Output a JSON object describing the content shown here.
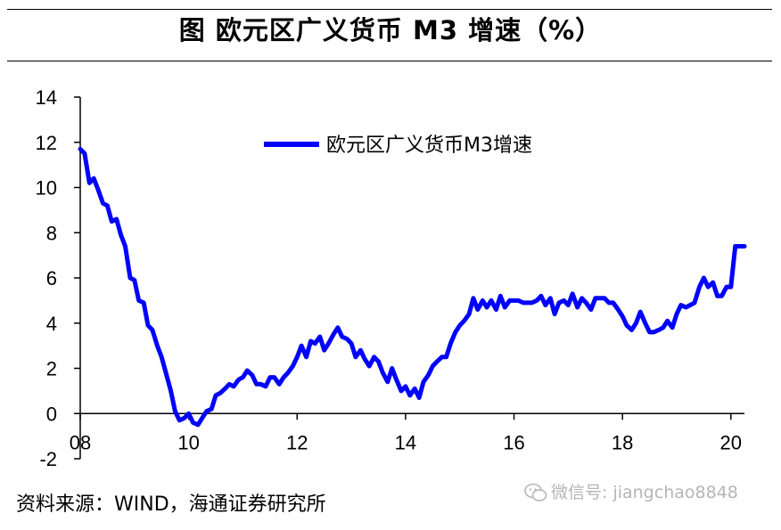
{
  "title": "图  欧元区广义货币 M3 增速（%）",
  "source": "资料来源：WIND，海通证券研究所",
  "watermark": {
    "text": "微信号: jiangchao8848",
    "icon": "wechat-icon"
  },
  "colors": {
    "series": "#0000ff",
    "axis": "#000000"
  },
  "chart_data": {
    "type": "line",
    "title": "图  欧元区广义货币 M3 增速（%）",
    "xlabel": "",
    "ylabel": "",
    "xlim": [
      2008.0,
      2020.25
    ],
    "ylim": [
      -2,
      14
    ],
    "yticks": [
      -2,
      0,
      2,
      4,
      6,
      8,
      10,
      12,
      14
    ],
    "xticks": [
      2008,
      2010,
      2012,
      2014,
      2016,
      2018,
      2020
    ],
    "xtick_labels": [
      "08",
      "10",
      "12",
      "14",
      "16",
      "18",
      "20"
    ],
    "grid": false,
    "legend": {
      "position": "top-center"
    },
    "series": [
      {
        "name": "欧元区广义货币M3增速",
        "x": [
          2008.0,
          2008.08,
          2008.17,
          2008.25,
          2008.33,
          2008.42,
          2008.5,
          2008.58,
          2008.67,
          2008.75,
          2008.83,
          2008.92,
          2009.0,
          2009.08,
          2009.17,
          2009.25,
          2009.33,
          2009.42,
          2009.5,
          2009.58,
          2009.67,
          2009.75,
          2009.83,
          2009.92,
          2010.0,
          2010.08,
          2010.17,
          2010.25,
          2010.33,
          2010.42,
          2010.5,
          2010.58,
          2010.67,
          2010.75,
          2010.83,
          2010.92,
          2011.0,
          2011.08,
          2011.17,
          2011.25,
          2011.33,
          2011.42,
          2011.5,
          2011.58,
          2011.67,
          2011.75,
          2011.83,
          2011.92,
          2012.0,
          2012.08,
          2012.17,
          2012.25,
          2012.33,
          2012.42,
          2012.5,
          2012.58,
          2012.67,
          2012.75,
          2012.83,
          2012.92,
          2013.0,
          2013.08,
          2013.17,
          2013.25,
          2013.33,
          2013.42,
          2013.5,
          2013.58,
          2013.67,
          2013.75,
          2013.83,
          2013.92,
          2014.0,
          2014.08,
          2014.17,
          2014.25,
          2014.33,
          2014.42,
          2014.5,
          2014.58,
          2014.67,
          2014.75,
          2014.83,
          2014.92,
          2015.0,
          2015.08,
          2015.17,
          2015.25,
          2015.33,
          2015.42,
          2015.5,
          2015.58,
          2015.67,
          2015.75,
          2015.83,
          2015.92,
          2016.0,
          2016.08,
          2016.17,
          2016.25,
          2016.33,
          2016.42,
          2016.5,
          2016.58,
          2016.67,
          2016.75,
          2016.83,
          2016.92,
          2017.0,
          2017.08,
          2017.17,
          2017.25,
          2017.33,
          2017.42,
          2017.5,
          2017.58,
          2017.67,
          2017.75,
          2017.83,
          2017.92,
          2018.0,
          2018.08,
          2018.17,
          2018.25,
          2018.33,
          2018.42,
          2018.5,
          2018.58,
          2018.67,
          2018.75,
          2018.83,
          2018.92,
          2019.0,
          2019.08,
          2019.17,
          2019.25,
          2019.33,
          2019.42,
          2019.5,
          2019.58,
          2019.67,
          2019.75,
          2019.83,
          2019.92,
          2020.0,
          2020.08,
          2020.17,
          2020.25
        ],
        "values": [
          11.7,
          11.5,
          10.2,
          10.4,
          9.9,
          9.3,
          9.2,
          8.5,
          8.6,
          7.9,
          7.4,
          6.0,
          5.9,
          5.0,
          4.9,
          3.9,
          3.7,
          3.0,
          2.5,
          1.8,
          1.0,
          0.1,
          -0.3,
          -0.2,
          0.0,
          -0.4,
          -0.5,
          -0.2,
          0.1,
          0.2,
          0.8,
          0.9,
          1.1,
          1.3,
          1.2,
          1.5,
          1.6,
          1.9,
          1.7,
          1.3,
          1.3,
          1.2,
          1.6,
          1.6,
          1.3,
          1.6,
          1.8,
          2.1,
          2.5,
          3.0,
          2.5,
          3.2,
          3.1,
          3.4,
          2.8,
          3.1,
          3.5,
          3.8,
          3.4,
          3.3,
          3.1,
          2.5,
          2.8,
          2.4,
          2.1,
          2.5,
          2.3,
          1.8,
          1.4,
          2.0,
          1.5,
          1.0,
          1.2,
          0.8,
          1.1,
          0.7,
          1.4,
          1.7,
          2.1,
          2.3,
          2.5,
          2.5,
          3.1,
          3.6,
          3.9,
          4.1,
          4.4,
          5.1,
          4.6,
          5.0,
          4.7,
          5.0,
          4.6,
          5.2,
          4.7,
          5.0,
          5.0,
          5.0,
          4.9,
          4.9,
          4.9,
          5.0,
          5.2,
          4.8,
          5.1,
          4.4,
          4.9,
          5.0,
          4.8,
          5.3,
          4.7,
          5.1,
          4.9,
          4.6,
          5.1,
          5.1,
          5.1,
          4.9,
          4.9,
          4.6,
          4.3,
          3.9,
          3.7,
          4.0,
          4.5,
          4.0,
          3.6,
          3.6,
          3.7,
          3.8,
          4.1,
          3.8,
          4.4,
          4.8,
          4.7,
          4.8,
          4.9,
          5.6,
          6.0,
          5.6,
          5.8,
          5.2,
          5.2,
          5.6,
          5.6,
          7.4,
          7.4,
          7.4
        ]
      }
    ]
  }
}
